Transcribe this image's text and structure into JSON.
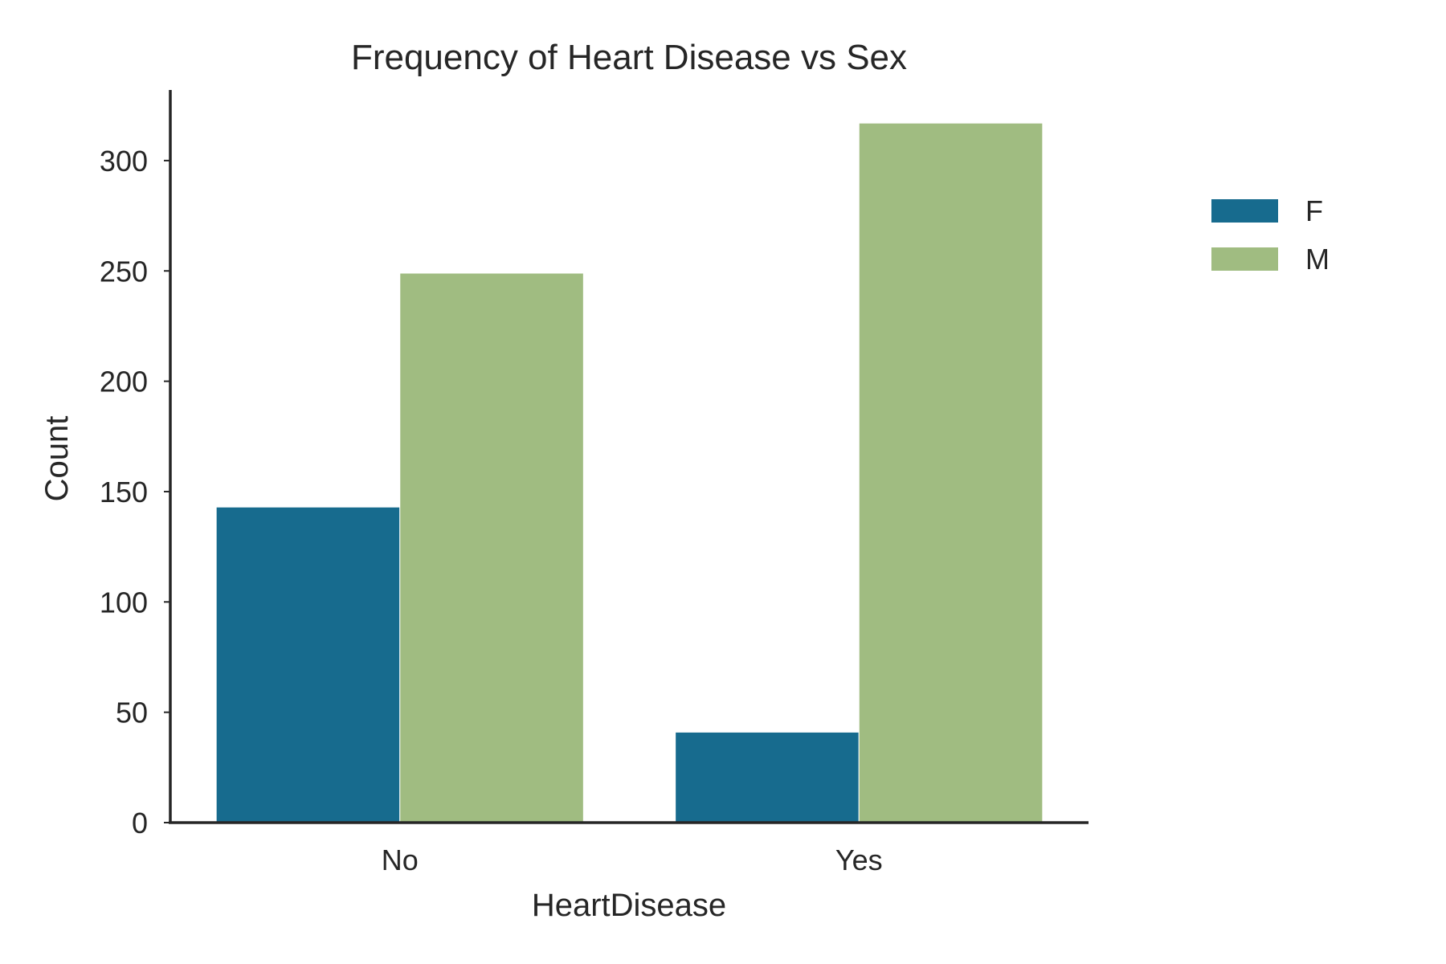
{
  "chart_data": {
    "type": "bar",
    "title": "Frequency of Heart Disease vs Sex",
    "xlabel": "HeartDisease",
    "ylabel": "Count",
    "categories": [
      "No",
      "Yes"
    ],
    "series": [
      {
        "name": "F",
        "values": [
          143,
          41
        ],
        "color": "#176b8e"
      },
      {
        "name": "M",
        "values": [
          249,
          317
        ],
        "color": "#a0bc81"
      }
    ],
    "ylim": [
      0,
      332
    ],
    "yticks": [
      0,
      50,
      100,
      150,
      200,
      250,
      300
    ],
    "grid": false,
    "legend": "right, outside"
  }
}
